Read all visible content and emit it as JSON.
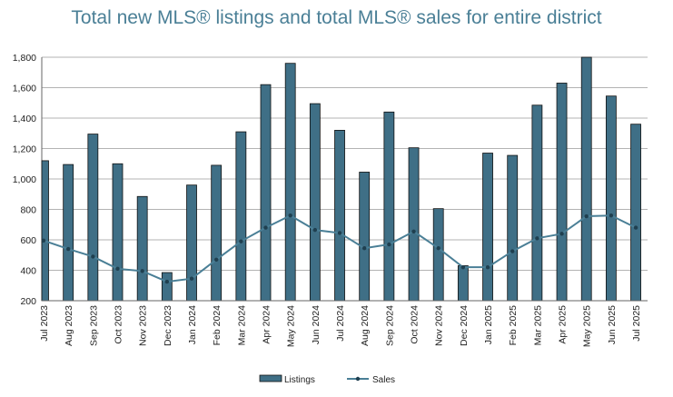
{
  "chart_data": {
    "type": "bar",
    "title": "Total new MLS® listings and total MLS® sales for entire district",
    "xlabel": "",
    "ylabel": "",
    "ylim": [
      200,
      1800
    ],
    "yticks": [
      200,
      400,
      600,
      800,
      1000,
      1200,
      1400,
      1600,
      1800
    ],
    "ytick_labels": [
      "200",
      "400",
      "600",
      "800",
      "1,000",
      "1,200",
      "1,400",
      "1,600",
      "1,800"
    ],
    "grid": true,
    "legend": "bottom-center",
    "categories": [
      "Jul 2023",
      "Aug 2023",
      "Sep 2023",
      "Oct 2023",
      "Nov 2023",
      "Dec 2023",
      "Jan 2024",
      "Feb 2024",
      "Mar 2024",
      "Apr 2024",
      "May 2024",
      "Jun 2024",
      "Jul 2024",
      "Aug 2024",
      "Sep 2024",
      "Oct 2024",
      "Nov 2024",
      "Dec 2024",
      "Jan 2025",
      "Feb 2025",
      "Mar 2025",
      "Apr 2025",
      "May 2025",
      "Jun 2025",
      "Jul 2025"
    ],
    "series": [
      {
        "name": "Listings",
        "type": "bar",
        "color": "#3f6f86",
        "values": [
          1120,
          1095,
          1295,
          1100,
          885,
          385,
          960,
          1090,
          1310,
          1620,
          1760,
          1495,
          1320,
          1045,
          1440,
          1205,
          805,
          430,
          1170,
          1155,
          1485,
          1630,
          1830,
          1545,
          1360
        ]
      },
      {
        "name": "Sales",
        "type": "line",
        "color": "#4a7f96",
        "values": [
          595,
          540,
          490,
          410,
          395,
          325,
          345,
          470,
          590,
          680,
          760,
          665,
          645,
          545,
          570,
          655,
          545,
          420,
          420,
          525,
          610,
          640,
          755,
          760,
          680
        ]
      }
    ]
  }
}
